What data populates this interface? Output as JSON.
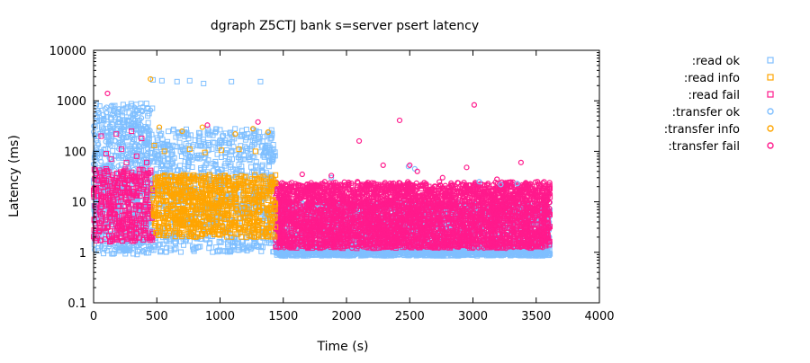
{
  "chart_data": {
    "type": "scatter",
    "title": "dgraph Z5CTJ bank s=server psert latency",
    "xlabel": "Time (s)",
    "ylabel": "Latency (ms)",
    "xlim": [
      0,
      4000
    ],
    "ylim": [
      0.1,
      10000
    ],
    "y_scale": "log",
    "x_ticks": [
      0,
      500,
      1000,
      1500,
      2000,
      2500,
      3000,
      3500,
      4000
    ],
    "y_ticks": [
      0.1,
      1,
      10,
      100,
      1000,
      10000
    ],
    "y_tick_labels": [
      "0.1",
      "1",
      "10",
      "100",
      "1000",
      "10000"
    ],
    "legend_position": "outside-right",
    "series": [
      {
        "name": ":read ok",
        "color": "#7fbfff",
        "marker": "square",
        "bands": [
          {
            "x": [
              0,
              470
            ],
            "y": [
              0.9,
              900
            ]
          },
          {
            "x": [
              470,
              1440
            ],
            "y": [
              1.0,
              280
            ]
          },
          {
            "x": [
              1440,
              3610
            ],
            "y": [
              0.85,
              1.5
            ]
          }
        ],
        "points": [
          [
            470,
            2600
          ],
          [
            540,
            2500
          ],
          [
            660,
            2400
          ],
          [
            760,
            2500
          ],
          [
            870,
            2200
          ],
          [
            1090,
            2400
          ],
          [
            1320,
            2400
          ]
        ]
      },
      {
        "name": ":read info",
        "color": "#ffa500",
        "marker": "square",
        "bands": [
          {
            "x": [
              470,
              1440
            ],
            "y": [
              2.0,
              35
            ]
          }
        ],
        "points": [
          [
            480,
            130
          ],
          [
            560,
            100
          ],
          [
            760,
            110
          ],
          [
            880,
            95
          ],
          [
            1010,
            105
          ],
          [
            1150,
            110
          ],
          [
            1280,
            100
          ]
        ]
      },
      {
        "name": ":read fail",
        "color": "#ff1a8c",
        "marker": "square",
        "bands": [
          {
            "x": [
              0,
              470
            ],
            "y": [
              1.6,
              45
            ]
          },
          {
            "x": [
              1440,
              3610
            ],
            "y": [
              1.2,
              22
            ]
          }
        ],
        "points": [
          [
            60,
            200
          ],
          [
            100,
            90
          ],
          [
            140,
            70
          ],
          [
            180,
            220
          ],
          [
            220,
            110
          ],
          [
            260,
            60
          ],
          [
            300,
            250
          ],
          [
            340,
            80
          ],
          [
            380,
            180
          ],
          [
            420,
            60
          ]
        ]
      },
      {
        "name": ":transfer ok",
        "color": "#7fbfff",
        "marker": "circle",
        "bands": [
          {
            "x": [
              0,
              470
            ],
            "y": [
              1.0,
              800
            ]
          },
          {
            "x": [
              1440,
              3610
            ],
            "y": [
              1.0,
              10
            ]
          }
        ],
        "points": [
          [
            1880,
            30
          ],
          [
            2490,
            50
          ],
          [
            2540,
            45
          ],
          [
            3050,
            25
          ],
          [
            3220,
            22
          ],
          [
            3350,
            23
          ]
        ]
      },
      {
        "name": ":transfer info",
        "color": "#ffa500",
        "marker": "circle",
        "bands": [],
        "points": [
          [
            450,
            2700
          ],
          [
            520,
            300
          ],
          [
            700,
            250
          ],
          [
            860,
            300
          ],
          [
            1120,
            220
          ],
          [
            1260,
            280
          ],
          [
            1380,
            240
          ]
        ]
      },
      {
        "name": ":transfer fail",
        "color": "#ff1a8c",
        "marker": "circle",
        "bands": [
          {
            "x": [
              1440,
              3610
            ],
            "y": [
              1.2,
              25
            ]
          }
        ],
        "points": [
          [
            110,
            1400
          ],
          [
            900,
            330
          ],
          [
            1300,
            380
          ],
          [
            1650,
            35
          ],
          [
            1880,
            33
          ],
          [
            2100,
            160
          ],
          [
            2290,
            53
          ],
          [
            2420,
            410
          ],
          [
            2500,
            53
          ],
          [
            2560,
            40
          ],
          [
            2760,
            30
          ],
          [
            2950,
            48
          ],
          [
            3010,
            830
          ],
          [
            3190,
            28
          ],
          [
            3380,
            60
          ],
          [
            3510,
            25
          ]
        ]
      }
    ]
  }
}
